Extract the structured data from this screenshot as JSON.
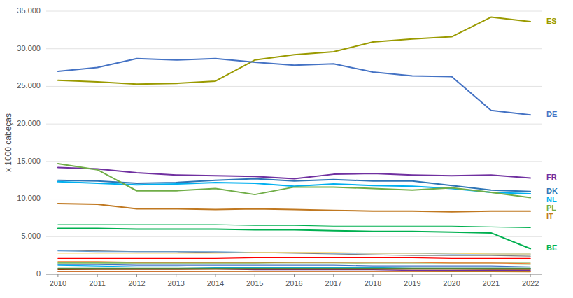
{
  "chart_data": {
    "type": "line",
    "ylabel": "x 1000 cabeças",
    "x": [
      2010,
      2011,
      2012,
      2013,
      2014,
      2015,
      2016,
      2017,
      2018,
      2019,
      2020,
      2021,
      2022
    ],
    "xlim": [
      2009.7,
      2022.3
    ],
    "xticks": [
      2010,
      2011,
      2012,
      2013,
      2014,
      2015,
      2016,
      2017,
      2018,
      2019,
      2020,
      2021,
      2022
    ],
    "ylim": [
      0,
      35000
    ],
    "yticks": [
      0,
      {
        "value": 5000,
        "label": "5.000"
      },
      {
        "value": 10000,
        "label": "10.000"
      },
      {
        "value": 15000,
        "label": "15.000"
      },
      {
        "value": 20000,
        "label": "20.000"
      },
      {
        "value": 25000,
        "label": "25.000"
      },
      {
        "value": 30000,
        "label": "30.000"
      },
      {
        "value": 35000,
        "label": "35.000"
      }
    ],
    "grid": true,
    "series": [
      {
        "name": "ES",
        "color": "#9a9a00",
        "values": [
          25800,
          25600,
          25300,
          25400,
          25700,
          28500,
          29200,
          29600,
          30900,
          31300,
          31600,
          34200,
          33600
        ]
      },
      {
        "name": "DE",
        "color": "#4472c4",
        "values": [
          27000,
          27500,
          28700,
          28500,
          28700,
          28200,
          27800,
          28000,
          26900,
          26400,
          26300,
          21800,
          21200
        ]
      },
      {
        "name": "FR",
        "color": "#7030a0",
        "values": [
          14200,
          14000,
          13500,
          13200,
          13100,
          13000,
          12700,
          13300,
          13400,
          13200,
          13100,
          13200,
          12800
        ]
      },
      {
        "name": "DK",
        "color": "#2e75b6",
        "values": [
          12500,
          12400,
          12100,
          12200,
          12500,
          12700,
          12400,
          12600,
          12400,
          12400,
          11800,
          11200,
          11000
        ]
      },
      {
        "name": "NL",
        "color": "#00b0f0",
        "values": [
          12300,
          12100,
          11900,
          12000,
          12200,
          12100,
          11700,
          12000,
          11800,
          11700,
          11400,
          10900,
          10700
        ]
      },
      {
        "name": "PL",
        "color": "#70ad47",
        "values": [
          14700,
          13900,
          11100,
          11100,
          11400,
          10600,
          11600,
          11600,
          11400,
          11200,
          11500,
          10900,
          10200
        ]
      },
      {
        "name": "IT",
        "color": "#c07820",
        "values": [
          9400,
          9300,
          8700,
          8700,
          8600,
          8700,
          8600,
          8500,
          8400,
          8400,
          8300,
          8400,
          8400
        ]
      },
      {
        "color": "#00b050",
        "values": [
          6600,
          6600,
          6600,
          6600,
          6600,
          6500,
          6500,
          6400,
          6400,
          6400,
          6400,
          6300,
          6200
        ]
      },
      {
        "name": "BE",
        "color": "#00b050",
        "values": [
          6100,
          6100,
          6000,
          6000,
          6000,
          5900,
          5900,
          5800,
          5700,
          5700,
          5600,
          5500,
          3400
        ]
      },
      {
        "color": "#808080",
        "values": [
          3200,
          3100,
          3000,
          3000,
          2900,
          2900,
          2800,
          2700,
          2600,
          2500,
          2500,
          2500,
          2400
        ]
      },
      {
        "color": "#5b9bd5",
        "values": [
          3100,
          3000,
          3000,
          3000,
          3000,
          2900,
          2900,
          2800,
          2800,
          2800,
          2700,
          2700,
          2700
        ]
      },
      {
        "color": "#ffd966",
        "values": [
          2800,
          2800,
          2800,
          2800,
          2800,
          2900,
          2900,
          2900,
          2800,
          2800,
          2800,
          2700,
          2700
        ]
      },
      {
        "color": "#ff0000",
        "values": [
          2100,
          2100,
          2100,
          2100,
          2100,
          2200,
          2200,
          2200,
          2200,
          2200,
          2100,
          2100,
          2100
        ]
      },
      {
        "color": "#a9d18e",
        "values": [
          1500,
          1500,
          1500,
          1500,
          1500,
          1500,
          1500,
          1500,
          1400,
          1400,
          1400,
          1400,
          1300
        ]
      },
      {
        "color": "#4472c4",
        "values": [
          1300,
          1300,
          1200,
          1200,
          1200,
          1200,
          1200,
          1200,
          1100,
          1100,
          1100,
          1100,
          1000
        ]
      },
      {
        "color": "#70ad47",
        "values": [
          1500,
          1500,
          1500,
          1500,
          1500,
          1500,
          1600,
          1600,
          1600,
          1600,
          1600,
          1600,
          1600
        ]
      },
      {
        "color": "#00b0f0",
        "values": [
          1200,
          1100,
          1000,
          1000,
          900,
          900,
          900,
          900,
          900,
          800,
          800,
          800,
          800
        ]
      },
      {
        "color": "#ed7d31",
        "values": [
          1700,
          1700,
          1600,
          1600,
          1600,
          1600,
          1600,
          1600,
          1600,
          1600,
          1500,
          1500,
          1400
        ]
      },
      {
        "color": "#548235",
        "values": [
          800,
          800,
          800,
          800,
          800,
          800,
          800,
          800,
          800,
          800,
          800,
          800,
          800
        ]
      },
      {
        "color": "#7030a0",
        "values": [
          700,
          700,
          700,
          700,
          700,
          600,
          600,
          600,
          600,
          500,
          500,
          500,
          500
        ]
      },
      {
        "color": "#843c0c",
        "values": [
          620,
          630,
          630,
          640,
          650,
          660,
          660,
          660,
          660,
          660,
          650,
          640,
          630
        ]
      },
      {
        "color": "#ff4444",
        "values": [
          350,
          350,
          360,
          370,
          380,
          390,
          390,
          390,
          390,
          380,
          370,
          360,
          350
        ]
      },
      {
        "color": "#c07820",
        "values": [
          350,
          350,
          350,
          350,
          350,
          350,
          350,
          350,
          350,
          350,
          340,
          330,
          320
        ]
      }
    ]
  }
}
